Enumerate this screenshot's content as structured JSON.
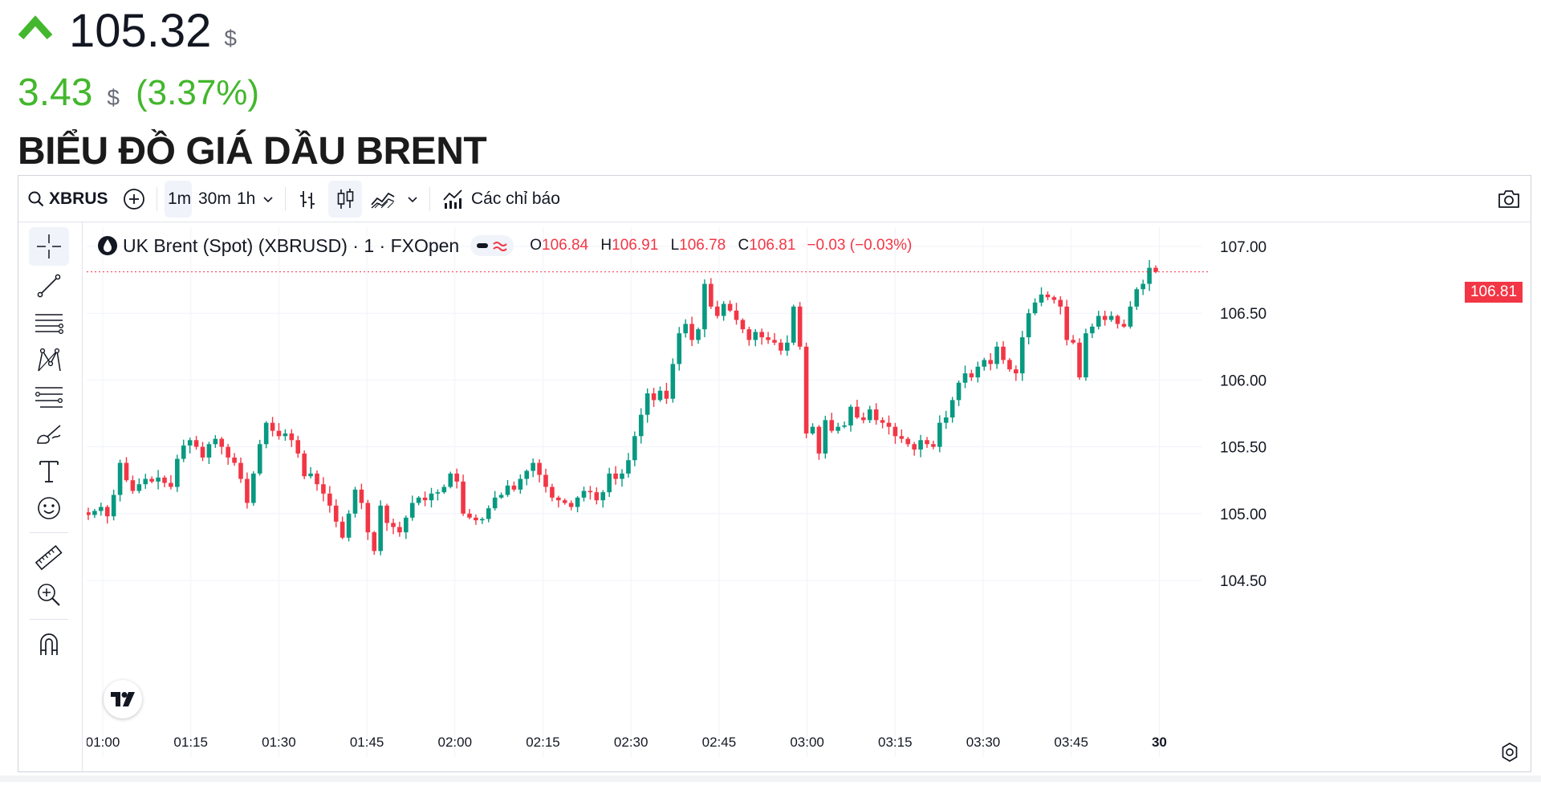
{
  "quote": {
    "price": "105.32",
    "currency": "$",
    "change": "3.43",
    "change_currency": "$",
    "change_pct": "(3.37%)",
    "up_color": "#43b72d"
  },
  "heading": "BIỂU ĐỒ GIÁ DẦU BRENT",
  "toolbar": {
    "symbol": "XBRUSD",
    "intervals": [
      "1m",
      "30m",
      "1h"
    ],
    "active_interval": "1m",
    "indicators_label": "Các chỉ báo",
    "icons": [
      "search-icon",
      "plus-circle-icon",
      "chevron-down-icon",
      "bar-style-icon",
      "candle-style-icon",
      "area-style-icon",
      "chevron-down-icon",
      "indicators-icon",
      "camera-icon"
    ]
  },
  "left_tools": {
    "icons": [
      "crosshair-icon",
      "trend-line-icon",
      "parallel-lines-icon",
      "pattern-icon",
      "fib-icon",
      "brush-icon",
      "text-icon",
      "emoji-icon",
      "ruler-icon",
      "zoom-in-icon",
      "magnet-icon"
    ]
  },
  "legend": {
    "title": "UK Brent (Spot) (XBRUSD) · 1 · FXOpen",
    "o_label": "O",
    "o": "106.84",
    "h_label": "H",
    "h": "106.91",
    "l_label": "L",
    "l": "106.78",
    "c_label": "C",
    "c": "106.81",
    "change": "−0.03 (−0.03%)",
    "down_color": "#f23645"
  },
  "chart_data": {
    "type": "candlestick",
    "interval": "1m",
    "ylim": [
      104.2,
      107.1
    ],
    "y_ticks": [
      "107.00",
      "106.50",
      "106.00",
      "105.50",
      "105.00",
      "104.50"
    ],
    "x_ticks": [
      "01:00",
      "01:15",
      "01:30",
      "01:45",
      "02:00",
      "02:15",
      "02:30",
      "02:45",
      "03:00",
      "03:15",
      "03:30",
      "03:45",
      "30"
    ],
    "last_price": "106.81",
    "up_color": "#089981",
    "down_color": "#f23645",
    "close_series": [
      104.99,
      105.02,
      105.05,
      104.98,
      105.14,
      105.38,
      105.25,
      105.17,
      105.22,
      105.26,
      105.24,
      105.27,
      105.23,
      105.2,
      105.41,
      105.51,
      105.55,
      105.5,
      105.42,
      105.52,
      105.56,
      105.5,
      105.42,
      105.38,
      105.26,
      105.08,
      105.3,
      105.52,
      105.68,
      105.62,
      105.58,
      105.6,
      105.55,
      105.45,
      105.28,
      105.3,
      105.22,
      105.15,
      105.06,
      104.94,
      104.82,
      105.0,
      105.18,
      105.08,
      104.86,
      104.72,
      105.06,
      104.93,
      104.9,
      104.86,
      104.97,
      105.08,
      105.12,
      105.1,
      105.15,
      105.16,
      105.2,
      105.3,
      105.24,
      105.0,
      104.97,
      104.95,
      104.96,
      105.04,
      105.12,
      105.14,
      105.21,
      105.18,
      105.26,
      105.32,
      105.38,
      105.29,
      105.2,
      105.12,
      105.1,
      105.08,
      105.05,
      105.12,
      105.17,
      105.16,
      105.1,
      105.16,
      105.3,
      105.26,
      105.3,
      105.4,
      105.58,
      105.74,
      105.9,
      105.85,
      105.92,
      105.86,
      106.12,
      106.35,
      106.42,
      106.3,
      106.38,
      106.72,
      106.55,
      106.48,
      106.57,
      106.52,
      106.45,
      106.38,
      106.3,
      106.36,
      106.32,
      106.3,
      106.28,
      106.22,
      106.28,
      106.55,
      106.25,
      105.6,
      105.65,
      105.45,
      105.7,
      105.62,
      105.65,
      105.66,
      105.8,
      105.72,
      105.7,
      105.78,
      105.7,
      105.68,
      105.65,
      105.58,
      105.56,
      105.52,
      105.48,
      105.55,
      105.52,
      105.5,
      105.68,
      105.72,
      105.85,
      105.98,
      106.05,
      106.02,
      106.1,
      106.15,
      106.12,
      106.25,
      106.15,
      106.08,
      106.05,
      106.32,
      106.5,
      106.58,
      106.64,
      106.62,
      106.6,
      106.55,
      106.3,
      106.28,
      106.02,
      106.35,
      106.4,
      106.48,
      106.45,
      106.48,
      106.42,
      106.4,
      106.55,
      106.68,
      106.72,
      106.84,
      106.81
    ]
  }
}
